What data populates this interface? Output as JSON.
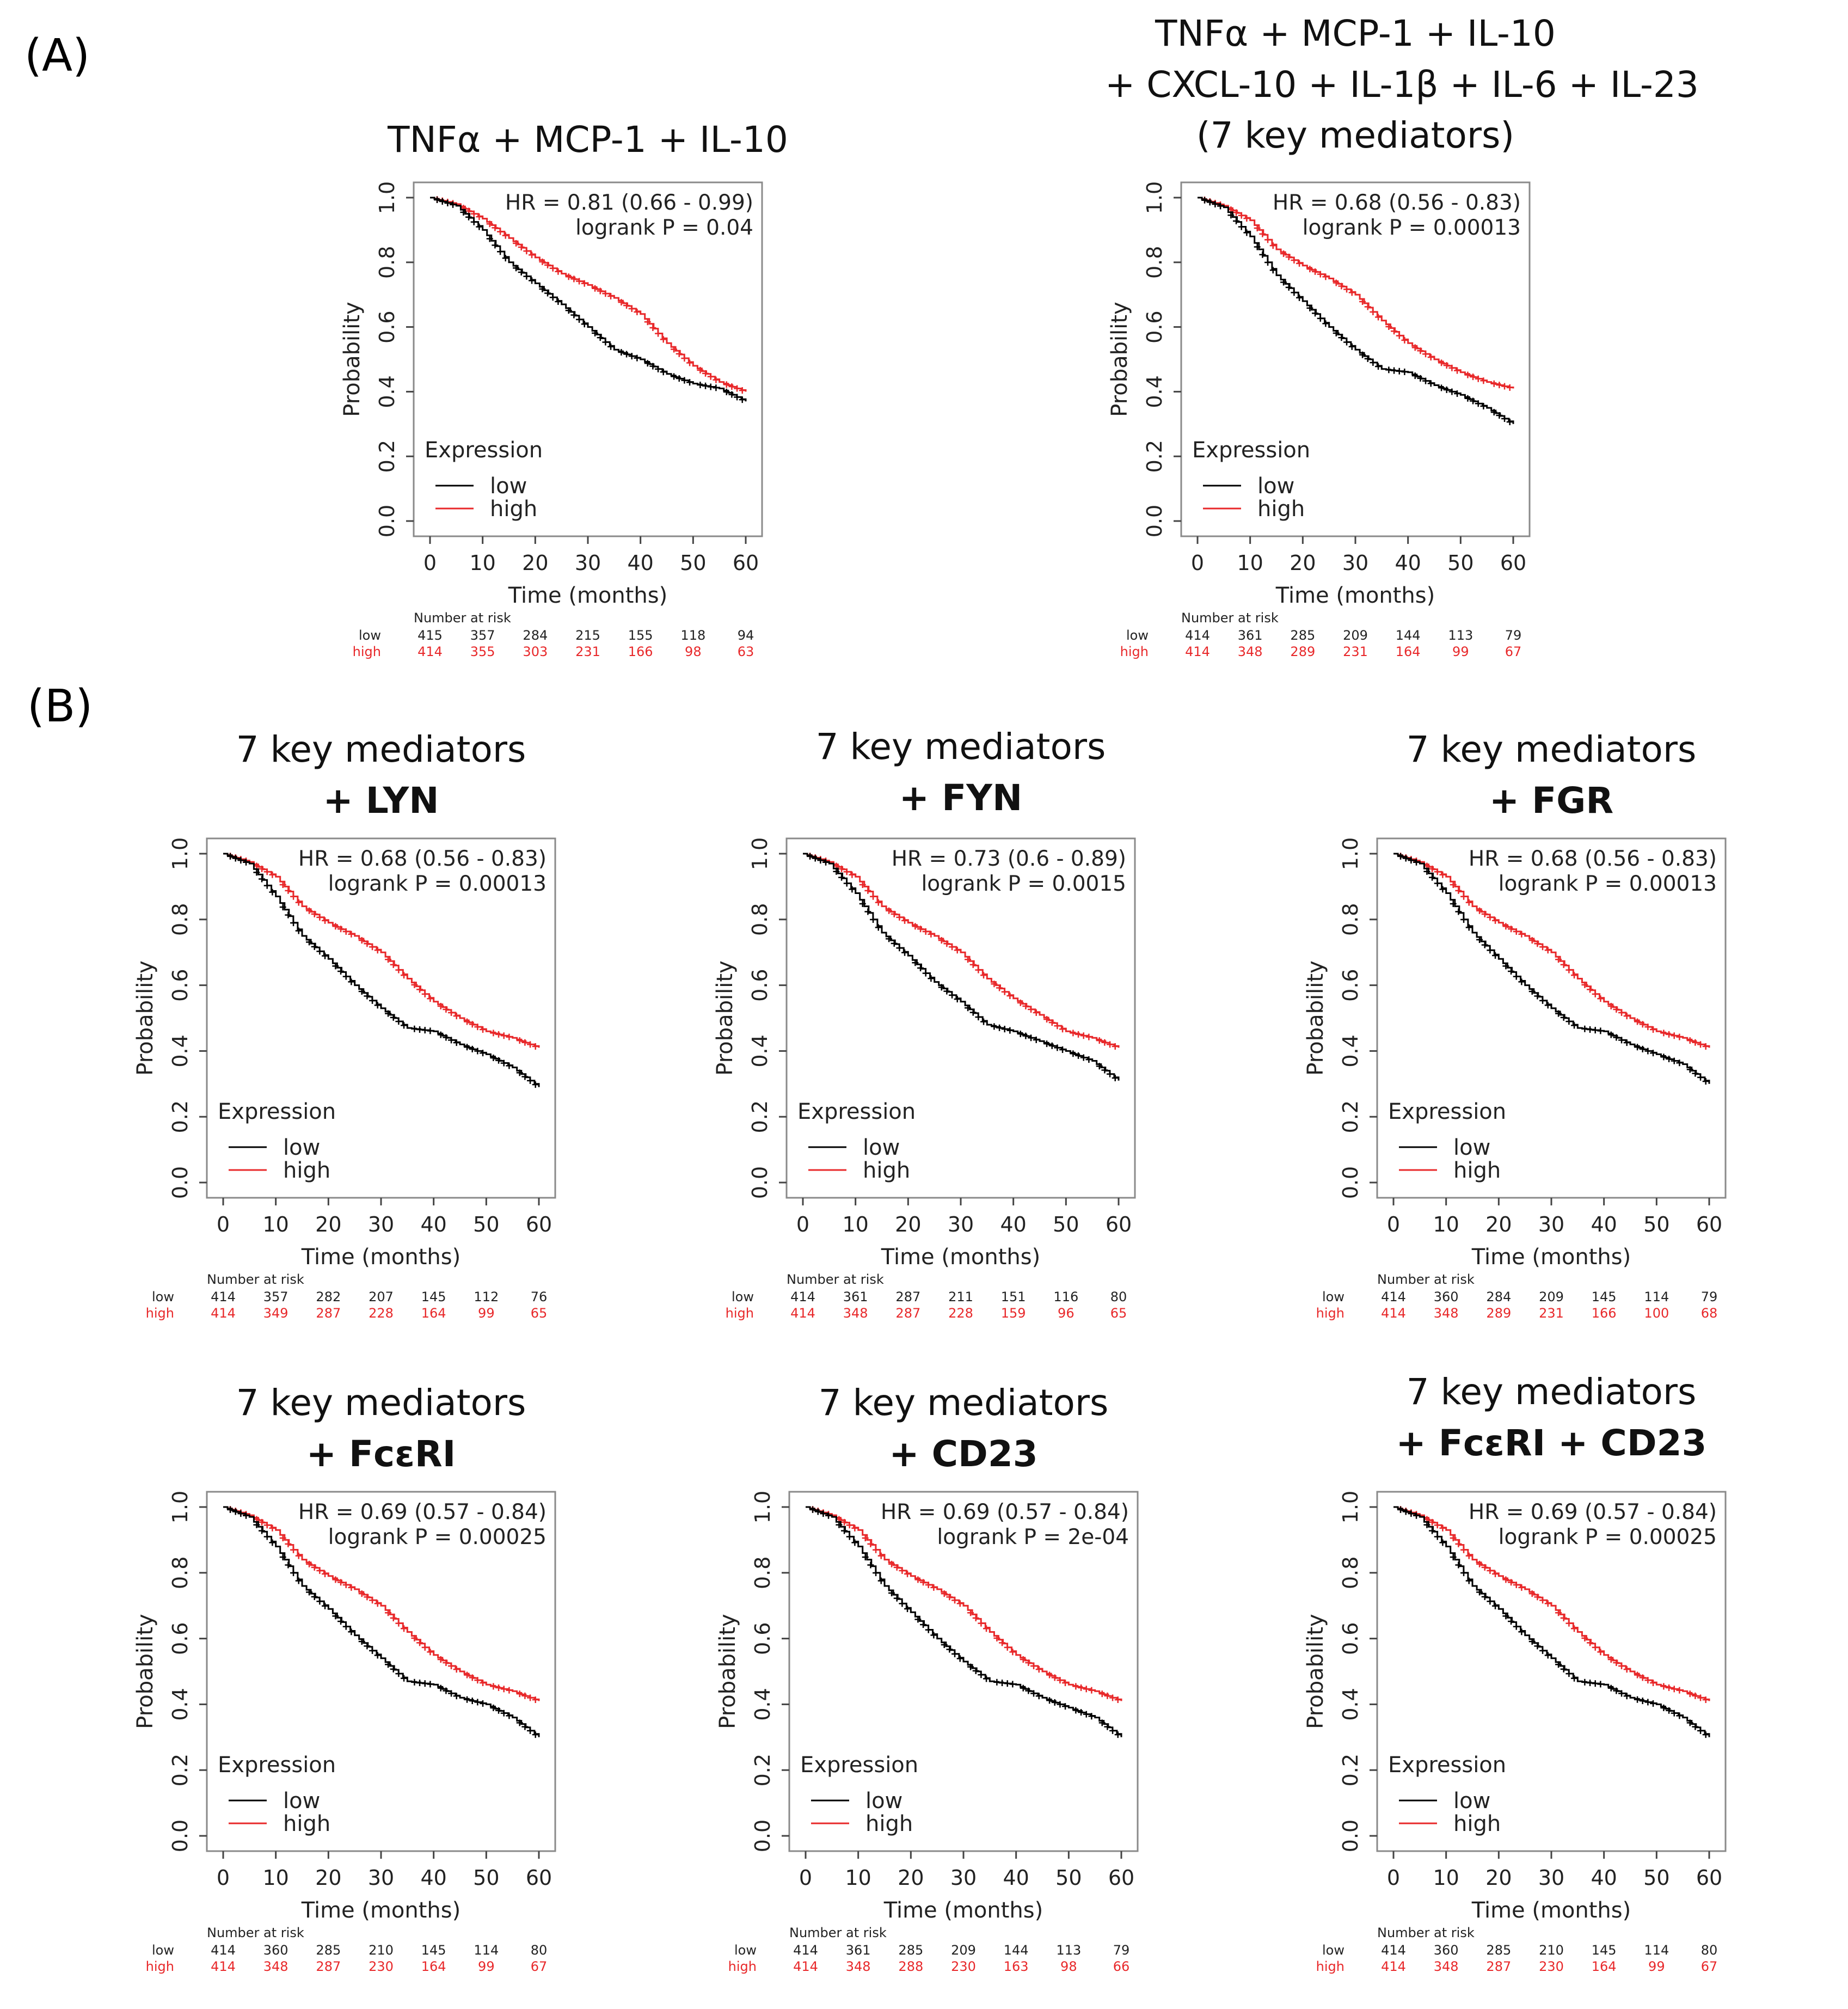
{
  "panel_labels": {
    "a": "(A)",
    "b": "(B)"
  },
  "chart_data": [
    {
      "type": "line",
      "title_lines": [
        "TNFα + MCP-1 + IL-10"
      ],
      "bold_lines": [],
      "xlabel": "Time (months)",
      "ylabel": "Probability",
      "xlim": [
        0,
        60
      ],
      "ylim": [
        0,
        1
      ],
      "xticks": [
        "0",
        "10",
        "20",
        "30",
        "40",
        "50",
        "60"
      ],
      "yticks": [
        "0.0",
        "0.2",
        "0.4",
        "0.6",
        "0.8",
        "1.0"
      ],
      "hr": "HR = 0.81 (0.66 - 0.99)",
      "logrank": "logrank P = 0.04",
      "legend_title": "Expression",
      "legend_low": "low",
      "legend_high": "high",
      "risk_title": "Number at risk",
      "risk_low_label": "low",
      "risk_high_label": "high",
      "risk_times": [
        0,
        10,
        20,
        30,
        40,
        50,
        60
      ],
      "risk_low": [
        "415",
        "357",
        "284",
        "215",
        "155",
        "118",
        "94"
      ],
      "risk_high": [
        "414",
        "355",
        "303",
        "231",
        "166",
        "98",
        "63"
      ],
      "series": [
        {
          "name": "low",
          "color": "#000000",
          "x": [
            0,
            5,
            10,
            15,
            20,
            25,
            30,
            35,
            40,
            45,
            50,
            55,
            60
          ],
          "y": [
            1.0,
            0.975,
            0.9,
            0.8,
            0.735,
            0.67,
            0.6,
            0.53,
            0.5,
            0.455,
            0.425,
            0.41,
            0.37
          ]
        },
        {
          "name": "high",
          "color": "#e8282a",
          "x": [
            0,
            5,
            10,
            15,
            20,
            25,
            30,
            35,
            40,
            45,
            50,
            55,
            60
          ],
          "y": [
            1.0,
            0.98,
            0.935,
            0.875,
            0.815,
            0.765,
            0.73,
            0.69,
            0.64,
            0.55,
            0.48,
            0.43,
            0.4
          ]
        }
      ]
    },
    {
      "type": "line",
      "title_lines": [
        "TNFα + MCP-1 + IL-10",
        "+ CXCL-10 + IL-1β + IL-6 + IL-23",
        "(7 key mediators)"
      ],
      "bold_lines": [],
      "xlabel": "Time (months)",
      "ylabel": "Probability",
      "xlim": [
        0,
        60
      ],
      "ylim": [
        0,
        1
      ],
      "xticks": [
        "0",
        "10",
        "20",
        "30",
        "40",
        "50",
        "60"
      ],
      "yticks": [
        "0.0",
        "0.2",
        "0.4",
        "0.6",
        "0.8",
        "1.0"
      ],
      "hr": "HR = 0.68 (0.56 - 0.83)",
      "logrank": "logrank P = 0.00013",
      "legend_title": "Expression",
      "legend_low": "low",
      "legend_high": "high",
      "risk_title": "Number at risk",
      "risk_low_label": "low",
      "risk_high_label": "high",
      "risk_times": [
        0,
        10,
        20,
        30,
        40,
        50,
        60
      ],
      "risk_low": [
        "414",
        "361",
        "285",
        "209",
        "144",
        "113",
        "79"
      ],
      "risk_high": [
        "414",
        "348",
        "289",
        "231",
        "164",
        "99",
        "67"
      ],
      "series": [
        {
          "name": "low",
          "color": "#000000",
          "x": [
            0,
            5,
            10,
            15,
            20,
            25,
            30,
            35,
            40,
            45,
            50,
            55,
            60
          ],
          "y": [
            1.0,
            0.97,
            0.88,
            0.76,
            0.68,
            0.6,
            0.53,
            0.47,
            0.46,
            0.42,
            0.39,
            0.35,
            0.3
          ]
        },
        {
          "name": "high",
          "color": "#e8282a",
          "x": [
            0,
            5,
            10,
            15,
            20,
            25,
            30,
            35,
            40,
            45,
            50,
            55,
            60
          ],
          "y": [
            1.0,
            0.975,
            0.93,
            0.84,
            0.79,
            0.75,
            0.7,
            0.62,
            0.55,
            0.5,
            0.46,
            0.43,
            0.41
          ]
        }
      ]
    },
    {
      "type": "line",
      "title_lines": [
        "7 key mediators",
        "+ LYN"
      ],
      "bold_lines": [
        1
      ],
      "xlabel": "Time (months)",
      "ylabel": "Probability",
      "xlim": [
        0,
        60
      ],
      "ylim": [
        0,
        1
      ],
      "xticks": [
        "0",
        "10",
        "20",
        "30",
        "40",
        "50",
        "60"
      ],
      "yticks": [
        "0.0",
        "0.2",
        "0.4",
        "0.6",
        "0.8",
        "1.0"
      ],
      "hr": "HR = 0.68 (0.56 - 0.83)",
      "logrank": "logrank P = 0.00013",
      "legend_title": "Expression",
      "legend_low": "low",
      "legend_high": "high",
      "risk_title": "Number at risk",
      "risk_low_label": "low",
      "risk_high_label": "high",
      "risk_times": [
        0,
        10,
        20,
        30,
        40,
        50,
        60
      ],
      "risk_low": [
        "414",
        "357",
        "282",
        "207",
        "145",
        "112",
        "76"
      ],
      "risk_high": [
        "414",
        "349",
        "287",
        "228",
        "164",
        "99",
        "65"
      ],
      "series": [
        {
          "name": "low",
          "color": "#000000",
          "x": [
            0,
            5,
            10,
            15,
            20,
            25,
            30,
            35,
            40,
            45,
            50,
            55,
            60
          ],
          "y": [
            1.0,
            0.97,
            0.87,
            0.75,
            0.68,
            0.6,
            0.53,
            0.47,
            0.46,
            0.42,
            0.39,
            0.35,
            0.29
          ]
        },
        {
          "name": "high",
          "color": "#e8282a",
          "x": [
            0,
            5,
            10,
            15,
            20,
            25,
            30,
            35,
            40,
            45,
            50,
            55,
            60
          ],
          "y": [
            1.0,
            0.975,
            0.93,
            0.84,
            0.79,
            0.75,
            0.7,
            0.62,
            0.55,
            0.5,
            0.46,
            0.44,
            0.41
          ]
        }
      ]
    },
    {
      "type": "line",
      "title_lines": [
        "7 key mediators",
        "+ FYN"
      ],
      "bold_lines": [
        1
      ],
      "xlabel": "Time (months)",
      "ylabel": "Probability",
      "xlim": [
        0,
        60
      ],
      "ylim": [
        0,
        1
      ],
      "xticks": [
        "0",
        "10",
        "20",
        "30",
        "40",
        "50",
        "60"
      ],
      "yticks": [
        "0.0",
        "0.2",
        "0.4",
        "0.6",
        "0.8",
        "1.0"
      ],
      "hr": "HR = 0.73 (0.6 - 0.89)",
      "logrank": "logrank P = 0.0015",
      "legend_title": "Expression",
      "legend_low": "low",
      "legend_high": "high",
      "risk_title": "Number at risk",
      "risk_low_label": "low",
      "risk_high_label": "high",
      "risk_times": [
        0,
        10,
        20,
        30,
        40,
        50,
        60
      ],
      "risk_low": [
        "414",
        "361",
        "287",
        "211",
        "151",
        "116",
        "80"
      ],
      "risk_high": [
        "414",
        "348",
        "287",
        "228",
        "159",
        "96",
        "65"
      ],
      "series": [
        {
          "name": "low",
          "color": "#000000",
          "x": [
            0,
            5,
            10,
            15,
            20,
            25,
            30,
            35,
            40,
            45,
            50,
            55,
            60
          ],
          "y": [
            1.0,
            0.97,
            0.88,
            0.76,
            0.69,
            0.61,
            0.55,
            0.48,
            0.46,
            0.43,
            0.4,
            0.37,
            0.31
          ]
        },
        {
          "name": "high",
          "color": "#e8282a",
          "x": [
            0,
            5,
            10,
            15,
            20,
            25,
            30,
            35,
            40,
            45,
            50,
            55,
            60
          ],
          "y": [
            1.0,
            0.975,
            0.93,
            0.84,
            0.79,
            0.75,
            0.7,
            0.62,
            0.56,
            0.51,
            0.46,
            0.44,
            0.41
          ]
        }
      ]
    },
    {
      "type": "line",
      "title_lines": [
        "7 key mediators",
        "+ FGR"
      ],
      "bold_lines": [
        1
      ],
      "xlabel": "Time (months)",
      "ylabel": "Probability",
      "xlim": [
        0,
        60
      ],
      "ylim": [
        0,
        1
      ],
      "xticks": [
        "0",
        "10",
        "20",
        "30",
        "40",
        "50",
        "60"
      ],
      "yticks": [
        "0.0",
        "0.2",
        "0.4",
        "0.6",
        "0.8",
        "1.0"
      ],
      "hr": "HR = 0.68 (0.56 - 0.83)",
      "logrank": "logrank P = 0.00013",
      "legend_title": "Expression",
      "legend_low": "low",
      "legend_high": "high",
      "risk_title": "Number at risk",
      "risk_low_label": "low",
      "risk_high_label": "high",
      "risk_times": [
        0,
        10,
        20,
        30,
        40,
        50,
        60
      ],
      "risk_low": [
        "414",
        "360",
        "284",
        "209",
        "145",
        "114",
        "79"
      ],
      "risk_high": [
        "414",
        "348",
        "289",
        "231",
        "166",
        "100",
        "68"
      ],
      "series": [
        {
          "name": "low",
          "color": "#000000",
          "x": [
            0,
            5,
            10,
            15,
            20,
            25,
            30,
            35,
            40,
            45,
            50,
            55,
            60
          ],
          "y": [
            1.0,
            0.97,
            0.88,
            0.76,
            0.68,
            0.6,
            0.53,
            0.47,
            0.46,
            0.42,
            0.39,
            0.36,
            0.3
          ]
        },
        {
          "name": "high",
          "color": "#e8282a",
          "x": [
            0,
            5,
            10,
            15,
            20,
            25,
            30,
            35,
            40,
            45,
            50,
            55,
            60
          ],
          "y": [
            1.0,
            0.975,
            0.93,
            0.84,
            0.79,
            0.75,
            0.7,
            0.62,
            0.55,
            0.5,
            0.46,
            0.44,
            0.41
          ]
        }
      ]
    },
    {
      "type": "line",
      "title_lines": [
        "7 key mediators",
        "+ FcεRI"
      ],
      "bold_lines": [
        1
      ],
      "xlabel": "Time (months)",
      "ylabel": "Probability",
      "xlim": [
        0,
        60
      ],
      "ylim": [
        0,
        1
      ],
      "xticks": [
        "0",
        "10",
        "20",
        "30",
        "40",
        "50",
        "60"
      ],
      "yticks": [
        "0.0",
        "0.2",
        "0.4",
        "0.6",
        "0.8",
        "1.0"
      ],
      "hr": "HR = 0.69 (0.57 - 0.84)",
      "logrank": "logrank P = 0.00025",
      "legend_title": "Expression",
      "legend_low": "low",
      "legend_high": "high",
      "risk_title": "Number at risk",
      "risk_low_label": "low",
      "risk_high_label": "high",
      "risk_times": [
        0,
        10,
        20,
        30,
        40,
        50,
        60
      ],
      "risk_low": [
        "414",
        "360",
        "285",
        "210",
        "145",
        "114",
        "80"
      ],
      "risk_high": [
        "414",
        "348",
        "287",
        "230",
        "164",
        "99",
        "67"
      ],
      "series": [
        {
          "name": "low",
          "color": "#000000",
          "x": [
            0,
            5,
            10,
            15,
            20,
            25,
            30,
            35,
            40,
            45,
            50,
            55,
            60
          ],
          "y": [
            1.0,
            0.97,
            0.88,
            0.76,
            0.69,
            0.61,
            0.54,
            0.47,
            0.46,
            0.42,
            0.4,
            0.36,
            0.3
          ]
        },
        {
          "name": "high",
          "color": "#e8282a",
          "x": [
            0,
            5,
            10,
            15,
            20,
            25,
            30,
            35,
            40,
            45,
            50,
            55,
            60
          ],
          "y": [
            1.0,
            0.975,
            0.93,
            0.84,
            0.79,
            0.75,
            0.7,
            0.62,
            0.55,
            0.5,
            0.46,
            0.44,
            0.41
          ]
        }
      ]
    },
    {
      "type": "line",
      "title_lines": [
        "7 key mediators",
        "+ CD23"
      ],
      "bold_lines": [
        1
      ],
      "xlabel": "Time (months)",
      "ylabel": "Probability",
      "xlim": [
        0,
        60
      ],
      "ylim": [
        0,
        1
      ],
      "xticks": [
        "0",
        "10",
        "20",
        "30",
        "40",
        "50",
        "60"
      ],
      "yticks": [
        "0.0",
        "0.2",
        "0.4",
        "0.6",
        "0.8",
        "1.0"
      ],
      "hr": "HR = 0.69 (0.57 - 0.84)",
      "logrank": "logrank P = 2e-04",
      "legend_title": "Expression",
      "legend_low": "low",
      "legend_high": "high",
      "risk_title": "Number at risk",
      "risk_low_label": "low",
      "risk_high_label": "high",
      "risk_times": [
        0,
        10,
        20,
        30,
        40,
        50,
        60
      ],
      "risk_low": [
        "414",
        "361",
        "285",
        "209",
        "144",
        "113",
        "79"
      ],
      "risk_high": [
        "414",
        "348",
        "288",
        "230",
        "163",
        "98",
        "66"
      ],
      "series": [
        {
          "name": "low",
          "color": "#000000",
          "x": [
            0,
            5,
            10,
            15,
            20,
            25,
            30,
            35,
            40,
            45,
            50,
            55,
            60
          ],
          "y": [
            1.0,
            0.97,
            0.88,
            0.76,
            0.68,
            0.6,
            0.53,
            0.47,
            0.46,
            0.42,
            0.39,
            0.36,
            0.3
          ]
        },
        {
          "name": "high",
          "color": "#e8282a",
          "x": [
            0,
            5,
            10,
            15,
            20,
            25,
            30,
            35,
            40,
            45,
            50,
            55,
            60
          ],
          "y": [
            1.0,
            0.975,
            0.93,
            0.84,
            0.79,
            0.75,
            0.7,
            0.62,
            0.55,
            0.5,
            0.46,
            0.44,
            0.41
          ]
        }
      ]
    },
    {
      "type": "line",
      "title_lines": [
        "7 key mediators",
        "+ FcεRI + CD23"
      ],
      "bold_lines": [
        1
      ],
      "xlabel": "Time (months)",
      "ylabel": "Probability",
      "xlim": [
        0,
        60
      ],
      "ylim": [
        0,
        1
      ],
      "xticks": [
        "0",
        "10",
        "20",
        "30",
        "40",
        "50",
        "60"
      ],
      "yticks": [
        "0.0",
        "0.2",
        "0.4",
        "0.6",
        "0.8",
        "1.0"
      ],
      "hr": "HR = 0.69 (0.57 - 0.84)",
      "logrank": "logrank P = 0.00025",
      "legend_title": "Expression",
      "legend_low": "low",
      "legend_high": "high",
      "risk_title": "Number at risk",
      "risk_low_label": "low",
      "risk_high_label": "high",
      "risk_times": [
        0,
        10,
        20,
        30,
        40,
        50,
        60
      ],
      "risk_low": [
        "414",
        "360",
        "285",
        "210",
        "145",
        "114",
        "80"
      ],
      "risk_high": [
        "414",
        "348",
        "287",
        "230",
        "164",
        "99",
        "67"
      ],
      "series": [
        {
          "name": "low",
          "color": "#000000",
          "x": [
            0,
            5,
            10,
            15,
            20,
            25,
            30,
            35,
            40,
            45,
            50,
            55,
            60
          ],
          "y": [
            1.0,
            0.97,
            0.88,
            0.76,
            0.69,
            0.61,
            0.54,
            0.47,
            0.46,
            0.42,
            0.4,
            0.36,
            0.3
          ]
        },
        {
          "name": "high",
          "color": "#e8282a",
          "x": [
            0,
            5,
            10,
            15,
            20,
            25,
            30,
            35,
            40,
            45,
            50,
            55,
            60
          ],
          "y": [
            1.0,
            0.975,
            0.93,
            0.84,
            0.79,
            0.75,
            0.7,
            0.62,
            0.55,
            0.5,
            0.46,
            0.44,
            0.41
          ]
        }
      ]
    }
  ]
}
